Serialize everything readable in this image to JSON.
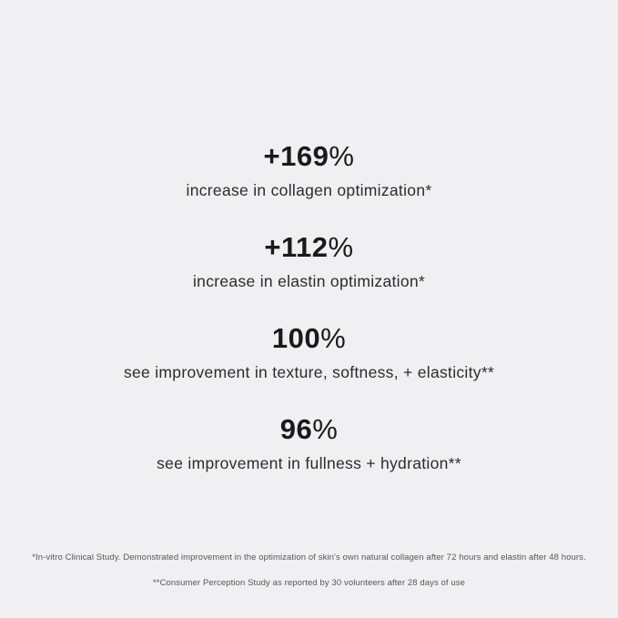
{
  "page": {
    "background_color": "#f0f0f2",
    "number_color": "#1a1a1a",
    "label_color": "#2b2b2b",
    "footnote_color": "#565656"
  },
  "stats": [
    {
      "number": "+169",
      "percent_sign": "%",
      "label": "increase in collagen optimization*"
    },
    {
      "number": "+112",
      "percent_sign": "%",
      "label": "increase in elastin optimization*"
    },
    {
      "number": "100",
      "percent_sign": "%",
      "label": "see improvement in texture, softness, + elasticity**"
    },
    {
      "number": "96",
      "percent_sign": "%",
      "label": "see improvement in fullness + hydration**"
    }
  ],
  "footnotes": [
    "*In-vitro Clinical Study. Demonstrated improvement in the optimization of skin's own natural collagen after 72 hours and elastin after 48 hours.",
    "**Consumer Perception Study as reported by 30 volunteers after 28 days of use"
  ]
}
